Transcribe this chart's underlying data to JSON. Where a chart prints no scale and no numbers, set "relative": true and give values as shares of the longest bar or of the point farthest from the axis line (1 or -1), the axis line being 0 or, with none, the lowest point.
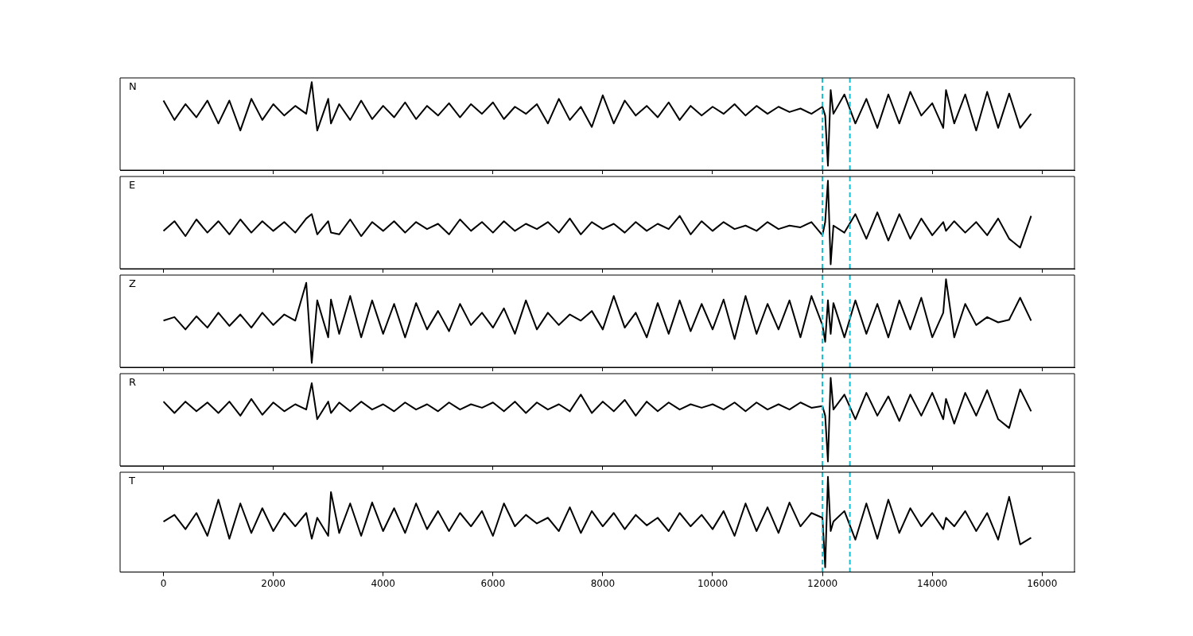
{
  "chart_data": [
    {
      "type": "line",
      "relative": true,
      "tick_labels": false,
      "xlim": [
        -790,
        16590
      ],
      "xticks": [
        0,
        2000,
        4000,
        6000,
        8000,
        10000,
        12000,
        14000,
        16000
      ],
      "x": [
        0,
        200,
        400,
        600,
        800,
        1000,
        1200,
        1400,
        1600,
        1800,
        2000,
        2200,
        2400,
        2600,
        2700,
        2800,
        3000,
        3050,
        3200,
        3400,
        3600,
        3800,
        4000,
        4200,
        4400,
        4600,
        4800,
        5000,
        5200,
        5400,
        5600,
        5800,
        6000,
        6200,
        6400,
        6600,
        6800,
        7000,
        7200,
        7400,
        7600,
        7800,
        8000,
        8200,
        8400,
        8600,
        8800,
        9000,
        9200,
        9400,
        9600,
        9800,
        10000,
        10200,
        10400,
        10600,
        10800,
        11000,
        11200,
        11400,
        11600,
        11800,
        12000,
        12050,
        12100,
        12150,
        12200,
        12400,
        12600,
        12800,
        13000,
        13200,
        13400,
        13600,
        13800,
        14000,
        14200,
        14250,
        14400,
        14600,
        14800,
        15000,
        15200,
        15400,
        15600,
        15800
      ],
      "ref_lines": [
        {
          "axis": "x",
          "value": 12000,
          "color": "#17becf",
          "line_style": "dashed"
        },
        {
          "axis": "x",
          "value": 12500,
          "color": "#17becf",
          "line_style": "dashed"
        }
      ],
      "series": [
        {
          "name": "N",
          "color": "#000000",
          "values": [
            0.79,
            0.57,
            0.75,
            0.6,
            0.79,
            0.53,
            0.79,
            0.45,
            0.81,
            0.57,
            0.75,
            0.62,
            0.73,
            0.64,
            1,
            0.45,
            0.81,
            0.53,
            0.75,
            0.57,
            0.79,
            0.58,
            0.73,
            0.6,
            0.77,
            0.58,
            0.73,
            0.62,
            0.76,
            0.6,
            0.75,
            0.64,
            0.77,
            0.58,
            0.72,
            0.64,
            0.75,
            0.53,
            0.81,
            0.57,
            0.72,
            0.49,
            0.85,
            0.53,
            0.79,
            0.62,
            0.73,
            0.6,
            0.77,
            0.57,
            0.73,
            0.62,
            0.72,
            0.64,
            0.75,
            0.62,
            0.73,
            0.64,
            0.72,
            0.66,
            0.7,
            0.64,
            0.72,
            0.62,
            0.05,
            0.91,
            0.64,
            0.86,
            0.53,
            0.81,
            0.48,
            0.86,
            0.53,
            0.89,
            0.62,
            0.76,
            0.48,
            0.91,
            0.53,
            0.86,
            0.45,
            0.89,
            0.48,
            0.87,
            0.48,
            0.64
          ]
        }
      ]
    },
    {
      "type": "line",
      "relative": true,
      "tick_labels": false,
      "xlim": [
        -790,
        16590
      ],
      "xticks": [
        0,
        2000,
        4000,
        6000,
        8000,
        10000,
        12000,
        14000,
        16000
      ],
      "x": [
        0,
        200,
        400,
        600,
        800,
        1000,
        1200,
        1400,
        1600,
        1800,
        2000,
        2200,
        2400,
        2600,
        2700,
        2800,
        3000,
        3050,
        3200,
        3400,
        3600,
        3800,
        4000,
        4200,
        4400,
        4600,
        4800,
        5000,
        5200,
        5400,
        5600,
        5800,
        6000,
        6200,
        6400,
        6600,
        6800,
        7000,
        7200,
        7400,
        7600,
        7800,
        8000,
        8200,
        8400,
        8600,
        8800,
        9000,
        9200,
        9400,
        9600,
        9800,
        10000,
        10200,
        10400,
        10600,
        10800,
        11000,
        11200,
        11400,
        11600,
        11800,
        12000,
        12050,
        12100,
        12150,
        12200,
        12400,
        12600,
        12800,
        13000,
        13200,
        13400,
        13600,
        13800,
        14000,
        14200,
        14250,
        14400,
        14600,
        14800,
        15000,
        15200,
        15400,
        15600,
        15800
      ],
      "ref_lines": [
        {
          "axis": "x",
          "value": 12000,
          "color": "#17becf",
          "line_style": "dashed"
        },
        {
          "axis": "x",
          "value": 12500,
          "color": "#17becf",
          "line_style": "dashed"
        }
      ],
      "series": [
        {
          "name": "E",
          "color": "#000000",
          "values": [
            0.43,
            0.54,
            0.37,
            0.56,
            0.41,
            0.54,
            0.39,
            0.56,
            0.41,
            0.54,
            0.43,
            0.53,
            0.41,
            0.57,
            0.62,
            0.39,
            0.54,
            0.41,
            0.39,
            0.56,
            0.37,
            0.53,
            0.43,
            0.54,
            0.41,
            0.53,
            0.45,
            0.51,
            0.39,
            0.56,
            0.43,
            0.53,
            0.41,
            0.54,
            0.43,
            0.51,
            0.45,
            0.53,
            0.41,
            0.57,
            0.39,
            0.53,
            0.45,
            0.51,
            0.41,
            0.53,
            0.43,
            0.51,
            0.45,
            0.6,
            0.39,
            0.54,
            0.43,
            0.53,
            0.45,
            0.49,
            0.43,
            0.53,
            0.45,
            0.49,
            0.47,
            0.53,
            0.38,
            0.53,
            1,
            0.05,
            0.49,
            0.41,
            0.62,
            0.34,
            0.64,
            0.32,
            0.62,
            0.34,
            0.57,
            0.38,
            0.53,
            0.43,
            0.54,
            0.41,
            0.53,
            0.38,
            0.57,
            0.34,
            0.24,
            0.6
          ]
        }
      ]
    },
    {
      "type": "line",
      "relative": true,
      "tick_labels": false,
      "xlim": [
        -790,
        16590
      ],
      "xticks": [
        0,
        2000,
        4000,
        6000,
        8000,
        10000,
        12000,
        14000,
        16000
      ],
      "x": [
        0,
        200,
        400,
        600,
        800,
        1000,
        1200,
        1400,
        1600,
        1800,
        2000,
        2200,
        2400,
        2600,
        2700,
        2800,
        3000,
        3050,
        3200,
        3400,
        3600,
        3800,
        4000,
        4200,
        4400,
        4600,
        4800,
        5000,
        5200,
        5400,
        5600,
        5800,
        6000,
        6200,
        6400,
        6600,
        6800,
        7000,
        7200,
        7400,
        7600,
        7800,
        8000,
        8200,
        8400,
        8600,
        8800,
        9000,
        9200,
        9400,
        9600,
        9800,
        10000,
        10200,
        10400,
        10600,
        10800,
        11000,
        11200,
        11400,
        11600,
        11800,
        12000,
        12050,
        12100,
        12150,
        12200,
        12400,
        12600,
        12800,
        13000,
        13200,
        13400,
        13600,
        13800,
        14000,
        14200,
        14250,
        14400,
        14600,
        14800,
        15000,
        15200,
        15400,
        15600,
        15800
      ],
      "ref_lines": [
        {
          "axis": "x",
          "value": 12000,
          "color": "#17becf",
          "line_style": "dashed"
        },
        {
          "axis": "x",
          "value": 12500,
          "color": "#17becf",
          "line_style": "dashed"
        }
      ],
      "series": [
        {
          "name": "Z",
          "color": "#000000",
          "values": [
            0.53,
            0.57,
            0.43,
            0.58,
            0.45,
            0.62,
            0.47,
            0.6,
            0.45,
            0.62,
            0.48,
            0.6,
            0.53,
            0.96,
            0.05,
            0.76,
            0.34,
            0.77,
            0.38,
            0.81,
            0.34,
            0.76,
            0.38,
            0.72,
            0.34,
            0.73,
            0.43,
            0.64,
            0.41,
            0.72,
            0.48,
            0.62,
            0.45,
            0.67,
            0.38,
            0.76,
            0.43,
            0.62,
            0.48,
            0.6,
            0.53,
            0.64,
            0.43,
            0.81,
            0.45,
            0.62,
            0.34,
            0.73,
            0.38,
            0.76,
            0.41,
            0.72,
            0.43,
            0.77,
            0.32,
            0.81,
            0.38,
            0.72,
            0.43,
            0.76,
            0.34,
            0.81,
            0.48,
            0.29,
            0.76,
            0.38,
            0.73,
            0.34,
            0.76,
            0.38,
            0.72,
            0.34,
            0.76,
            0.43,
            0.79,
            0.34,
            0.62,
            1,
            0.34,
            0.72,
            0.48,
            0.57,
            0.51,
            0.54,
            0.79,
            0.53
          ]
        }
      ]
    },
    {
      "type": "line",
      "relative": true,
      "tick_labels": false,
      "xlim": [
        -790,
        16590
      ],
      "xticks": [
        0,
        2000,
        4000,
        6000,
        8000,
        10000,
        12000,
        14000,
        16000
      ],
      "x": [
        0,
        200,
        400,
        600,
        800,
        1000,
        1200,
        1400,
        1600,
        1800,
        2000,
        2200,
        2400,
        2600,
        2700,
        2800,
        3000,
        3050,
        3200,
        3400,
        3600,
        3800,
        4000,
        4200,
        4400,
        4600,
        4800,
        5000,
        5200,
        5400,
        5600,
        5800,
        6000,
        6200,
        6400,
        6600,
        6800,
        7000,
        7200,
        7400,
        7600,
        7800,
        8000,
        8200,
        8400,
        8600,
        8800,
        9000,
        9200,
        9400,
        9600,
        9800,
        10000,
        10200,
        10400,
        10600,
        10800,
        11000,
        11200,
        11400,
        11600,
        11800,
        12000,
        12050,
        12100,
        12150,
        12200,
        12400,
        12600,
        12800,
        13000,
        13200,
        13400,
        13600,
        13800,
        14000,
        14200,
        14250,
        14400,
        14600,
        14800,
        15000,
        15200,
        15400,
        15600,
        15800
      ],
      "ref_lines": [
        {
          "axis": "x",
          "value": 12000,
          "color": "#17becf",
          "line_style": "dashed"
        },
        {
          "axis": "x",
          "value": 12500,
          "color": "#17becf",
          "line_style": "dashed"
        }
      ],
      "series": [
        {
          "name": "R",
          "color": "#000000",
          "values": [
            0.73,
            0.6,
            0.73,
            0.62,
            0.72,
            0.6,
            0.73,
            0.57,
            0.76,
            0.58,
            0.72,
            0.62,
            0.7,
            0.64,
            0.94,
            0.53,
            0.73,
            0.6,
            0.72,
            0.62,
            0.73,
            0.64,
            0.7,
            0.62,
            0.72,
            0.64,
            0.7,
            0.62,
            0.72,
            0.64,
            0.7,
            0.66,
            0.72,
            0.62,
            0.73,
            0.6,
            0.72,
            0.64,
            0.7,
            0.62,
            0.81,
            0.6,
            0.73,
            0.62,
            0.75,
            0.57,
            0.73,
            0.62,
            0.72,
            0.64,
            0.7,
            0.66,
            0.7,
            0.64,
            0.72,
            0.62,
            0.72,
            0.64,
            0.7,
            0.64,
            0.72,
            0.66,
            0.68,
            0.57,
            0.05,
            1,
            0.64,
            0.81,
            0.53,
            0.83,
            0.57,
            0.79,
            0.51,
            0.81,
            0.57,
            0.83,
            0.53,
            0.76,
            0.48,
            0.83,
            0.57,
            0.86,
            0.53,
            0.43,
            0.87,
            0.62
          ]
        }
      ]
    },
    {
      "type": "line",
      "relative": true,
      "tick_labels": "x",
      "xlim": [
        -790,
        16590
      ],
      "xticks": [
        0,
        2000,
        4000,
        6000,
        8000,
        10000,
        12000,
        14000,
        16000
      ],
      "x": [
        0,
        200,
        400,
        600,
        800,
        1000,
        1200,
        1400,
        1600,
        1800,
        2000,
        2200,
        2400,
        2600,
        2700,
        2800,
        3000,
        3050,
        3200,
        3400,
        3600,
        3800,
        4000,
        4200,
        4400,
        4600,
        4800,
        5000,
        5200,
        5400,
        5600,
        5800,
        6000,
        6200,
        6400,
        6600,
        6800,
        7000,
        7200,
        7400,
        7600,
        7800,
        8000,
        8200,
        8400,
        8600,
        8800,
        9000,
        9200,
        9400,
        9600,
        9800,
        10000,
        10200,
        10400,
        10600,
        10800,
        11000,
        11200,
        11400,
        11600,
        11800,
        12000,
        12050,
        12100,
        12150,
        12200,
        12400,
        12600,
        12800,
        13000,
        13200,
        13400,
        13600,
        13800,
        14000,
        14200,
        14250,
        14400,
        14600,
        14800,
        15000,
        15200,
        15400,
        15600,
        15800
      ],
      "ref_lines": [
        {
          "axis": "x",
          "value": 12000,
          "color": "#17becf",
          "line_style": "dashed"
        },
        {
          "axis": "x",
          "value": 12500,
          "color": "#17becf",
          "line_style": "dashed"
        }
      ],
      "series": [
        {
          "name": "T",
          "color": "#000000",
          "values": [
            0.53,
            0.6,
            0.45,
            0.62,
            0.38,
            0.76,
            0.35,
            0.72,
            0.41,
            0.67,
            0.43,
            0.62,
            0.48,
            0.62,
            0.35,
            0.57,
            0.38,
            0.84,
            0.41,
            0.72,
            0.38,
            0.73,
            0.43,
            0.67,
            0.41,
            0.72,
            0.45,
            0.64,
            0.43,
            0.62,
            0.48,
            0.64,
            0.38,
            0.72,
            0.48,
            0.6,
            0.51,
            0.57,
            0.43,
            0.68,
            0.41,
            0.64,
            0.48,
            0.62,
            0.45,
            0.6,
            0.49,
            0.57,
            0.43,
            0.62,
            0.48,
            0.6,
            0.45,
            0.64,
            0.38,
            0.72,
            0.43,
            0.68,
            0.41,
            0.73,
            0.48,
            0.62,
            0.57,
            0.05,
            1,
            0.43,
            0.53,
            0.64,
            0.34,
            0.72,
            0.35,
            0.76,
            0.41,
            0.67,
            0.48,
            0.62,
            0.45,
            0.57,
            0.48,
            0.64,
            0.43,
            0.62,
            0.34,
            0.79,
            0.29,
            0.36
          ]
        }
      ]
    }
  ]
}
